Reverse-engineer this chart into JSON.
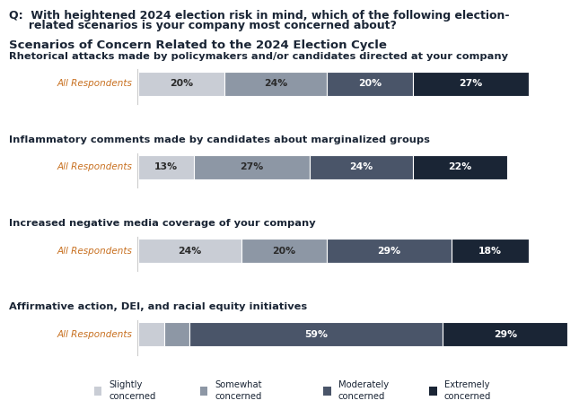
{
  "question_line1": "Q:  With heightened 2024 election risk in mind, which of the following election-",
  "question_line2": "     related scenarios is your company most concerned about?",
  "subtitle": "Scenarios of Concern Related to the 2024 Election Cycle",
  "categories": [
    "Rhetorical attacks made by policymakers and/or candidates directed at your company",
    "Inflammatory comments made by candidates about marginalized groups",
    "Increased negative media coverage of your company",
    "Affirmative action, DEI, and racial equity initiatives"
  ],
  "row_label": "All Respondents",
  "data": [
    [
      20,
      24,
      20,
      27
    ],
    [
      13,
      27,
      24,
      22
    ],
    [
      24,
      20,
      29,
      18
    ],
    [
      6,
      6,
      59,
      29
    ]
  ],
  "colors": [
    "#c9cdd5",
    "#8d97a5",
    "#4a5569",
    "#1a2535"
  ],
  "legend_labels": [
    "Slightly\nconcerned",
    "Somewhat\nconcerned",
    "Moderately\nconcerned",
    "Extremely\nconcerned"
  ],
  "background_color": "#ffffff",
  "text_color_light": "#ffffff",
  "text_color_dark": "#2a2a2a",
  "label_color": "#c87020"
}
